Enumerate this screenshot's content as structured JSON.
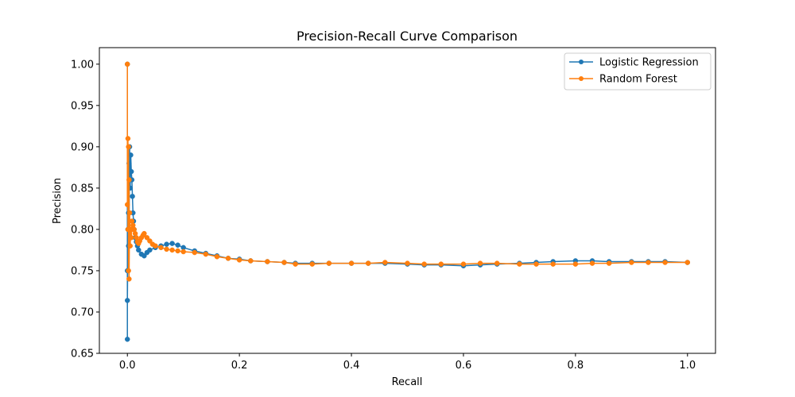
{
  "chart_data": {
    "type": "line",
    "title": "Precision-Recall Curve Comparison",
    "xlabel": "Recall",
    "ylabel": "Precision",
    "xlim": [
      -0.05,
      1.05
    ],
    "ylim": [
      0.65,
      1.02
    ],
    "xticks": [
      0.0,
      0.2,
      0.4,
      0.6,
      0.8,
      1.0
    ],
    "xtick_labels": [
      "0.0",
      "0.2",
      "0.4",
      "0.6",
      "0.8",
      "1.0"
    ],
    "yticks": [
      0.65,
      0.7,
      0.75,
      0.8,
      0.85,
      0.9,
      0.95,
      1.0
    ],
    "ytick_labels": [
      "0.65",
      "0.70",
      "0.75",
      "0.80",
      "0.85",
      "0.90",
      "0.95",
      "1.00"
    ],
    "grid": false,
    "legend_position": "top-right",
    "series": [
      {
        "name": "Logistic Regression",
        "color": "#1f77b4",
        "marker": "circle",
        "x": [
          0.0,
          0.0,
          0.0,
          0.0,
          0.001,
          0.001,
          0.002,
          0.002,
          0.003,
          0.003,
          0.004,
          0.005,
          0.006,
          0.007,
          0.008,
          0.009,
          0.01,
          0.011,
          0.012,
          0.014,
          0.016,
          0.018,
          0.02,
          0.025,
          0.03,
          0.035,
          0.04,
          0.05,
          0.06,
          0.07,
          0.08,
          0.09,
          0.1,
          0.12,
          0.14,
          0.16,
          0.18,
          0.2,
          0.22,
          0.25,
          0.28,
          0.3,
          0.33,
          0.36,
          0.4,
          0.43,
          0.46,
          0.5,
          0.53,
          0.56,
          0.6,
          0.63,
          0.66,
          0.7,
          0.73,
          0.76,
          0.8,
          0.83,
          0.86,
          0.9,
          0.93,
          0.96,
          1.0
        ],
        "y": [
          0.667,
          1.0,
          0.75,
          0.714,
          0.8,
          0.75,
          0.82,
          0.78,
          0.88,
          0.8,
          0.9,
          0.85,
          0.89,
          0.87,
          0.86,
          0.84,
          0.82,
          0.81,
          0.8,
          0.79,
          0.785,
          0.78,
          0.775,
          0.77,
          0.768,
          0.772,
          0.775,
          0.778,
          0.78,
          0.782,
          0.783,
          0.781,
          0.778,
          0.774,
          0.771,
          0.768,
          0.765,
          0.764,
          0.762,
          0.761,
          0.76,
          0.759,
          0.759,
          0.759,
          0.759,
          0.759,
          0.759,
          0.758,
          0.757,
          0.757,
          0.756,
          0.757,
          0.758,
          0.759,
          0.76,
          0.761,
          0.762,
          0.762,
          0.761,
          0.761,
          0.761,
          0.761,
          0.76
        ]
      },
      {
        "name": "Random Forest",
        "color": "#ff7f0e",
        "marker": "circle",
        "x": [
          0.0,
          0.0,
          0.001,
          0.001,
          0.002,
          0.002,
          0.003,
          0.003,
          0.004,
          0.005,
          0.006,
          0.007,
          0.008,
          0.009,
          0.01,
          0.012,
          0.014,
          0.016,
          0.018,
          0.02,
          0.022,
          0.025,
          0.028,
          0.03,
          0.035,
          0.04,
          0.045,
          0.05,
          0.06,
          0.07,
          0.08,
          0.09,
          0.1,
          0.12,
          0.14,
          0.16,
          0.18,
          0.2,
          0.22,
          0.25,
          0.28,
          0.3,
          0.33,
          0.36,
          0.4,
          0.43,
          0.46,
          0.5,
          0.53,
          0.56,
          0.6,
          0.63,
          0.66,
          0.7,
          0.73,
          0.76,
          0.8,
          0.83,
          0.86,
          0.9,
          0.93,
          0.96,
          1.0
        ],
        "y": [
          1.0,
          0.83,
          0.91,
          0.8,
          0.9,
          0.75,
          0.86,
          0.74,
          0.82,
          0.78,
          0.8,
          0.79,
          0.81,
          0.8,
          0.805,
          0.8,
          0.795,
          0.79,
          0.785,
          0.783,
          0.786,
          0.79,
          0.793,
          0.795,
          0.79,
          0.786,
          0.782,
          0.78,
          0.778,
          0.776,
          0.775,
          0.774,
          0.773,
          0.772,
          0.77,
          0.767,
          0.765,
          0.763,
          0.762,
          0.761,
          0.76,
          0.758,
          0.758,
          0.759,
          0.759,
          0.759,
          0.76,
          0.759,
          0.758,
          0.758,
          0.758,
          0.759,
          0.759,
          0.758,
          0.758,
          0.758,
          0.758,
          0.759,
          0.759,
          0.76,
          0.76,
          0.76,
          0.76
        ]
      }
    ]
  }
}
